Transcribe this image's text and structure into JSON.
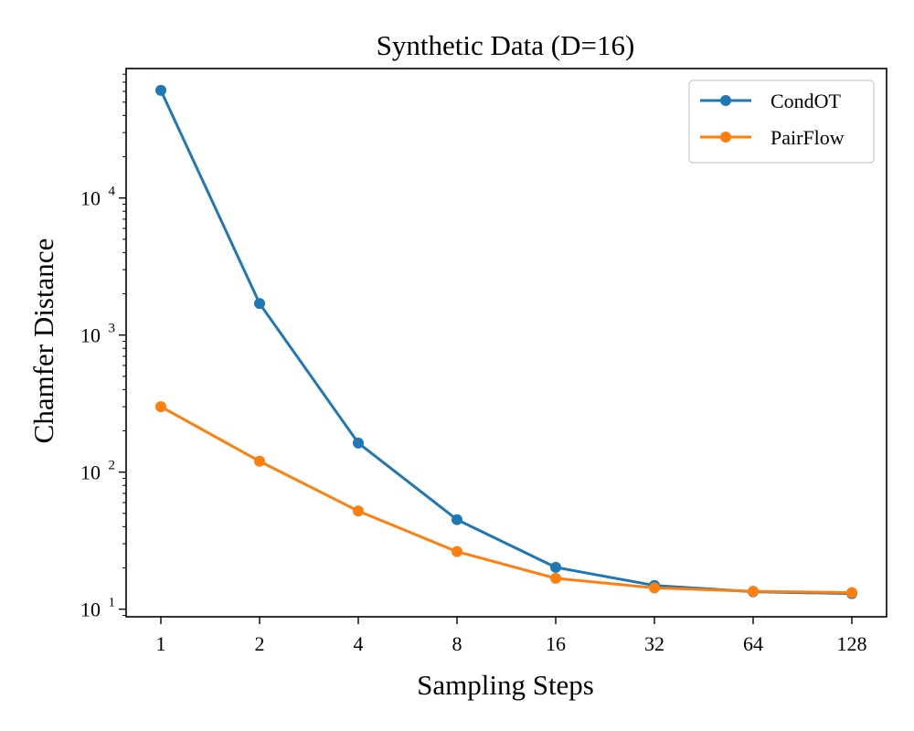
{
  "chart_data": {
    "type": "line",
    "title": "Synthetic Data (D=16)",
    "xlabel": "Sampling Steps",
    "ylabel": "Chamfer Distance",
    "yscale": "log",
    "ylim": [
      8.8,
      88000
    ],
    "categories": [
      "1",
      "2",
      "4",
      "8",
      "16",
      "32",
      "64",
      "128"
    ],
    "y_ticks": [
      {
        "value": 10,
        "base": "10",
        "exp": "1"
      },
      {
        "value": 100,
        "base": "10",
        "exp": "2"
      },
      {
        "value": 1000,
        "base": "10",
        "exp": "3"
      },
      {
        "value": 10000,
        "base": "10",
        "exp": "4"
      }
    ],
    "legend_position": "top-right",
    "grid": false,
    "series": [
      {
        "name": "CondOT",
        "color": "#1f77b4",
        "values": [
          61000,
          1700,
          163,
          45,
          20.2,
          14.9,
          13.4,
          13.0
        ]
      },
      {
        "name": "PairFlow",
        "color": "#ff7f0e",
        "values": [
          300,
          120,
          52,
          26.3,
          16.8,
          14.3,
          13.5,
          13.2
        ]
      }
    ]
  }
}
